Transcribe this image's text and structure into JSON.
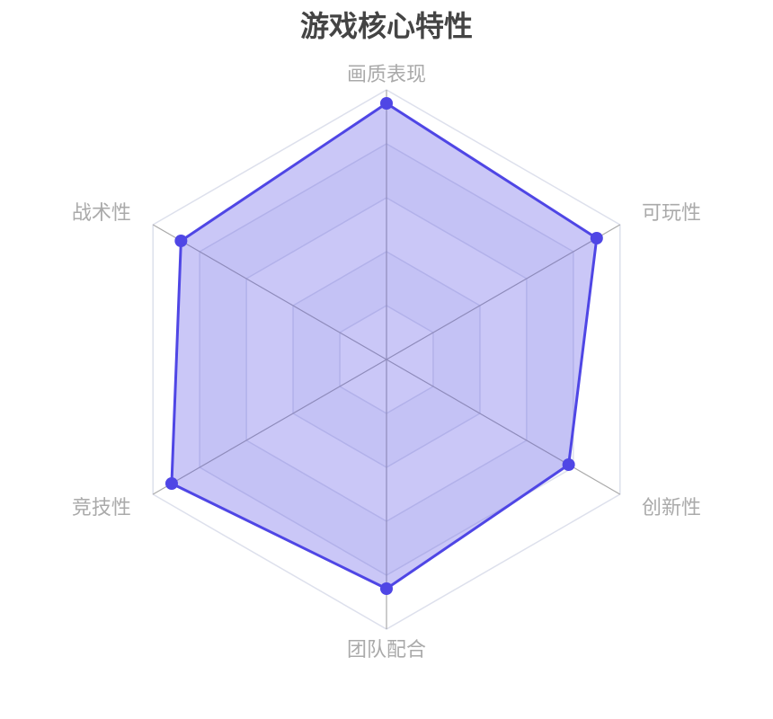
{
  "chart_data": {
    "type": "radar",
    "title": "游戏核心特性",
    "indicators": [
      "画质表现",
      "可玩性",
      "创新性",
      "团队配合",
      "竞技性",
      "战术性"
    ],
    "max": 100,
    "split_number": 5,
    "series": [
      {
        "values": [
          95,
          90,
          78,
          85,
          92,
          88
        ]
      }
    ],
    "colors": {
      "line": "#4f46e5",
      "area": "#4f46e5",
      "split_line": "#dde0ec",
      "axis_line": "#aaaaaa",
      "label": "#aaaaaa"
    }
  }
}
